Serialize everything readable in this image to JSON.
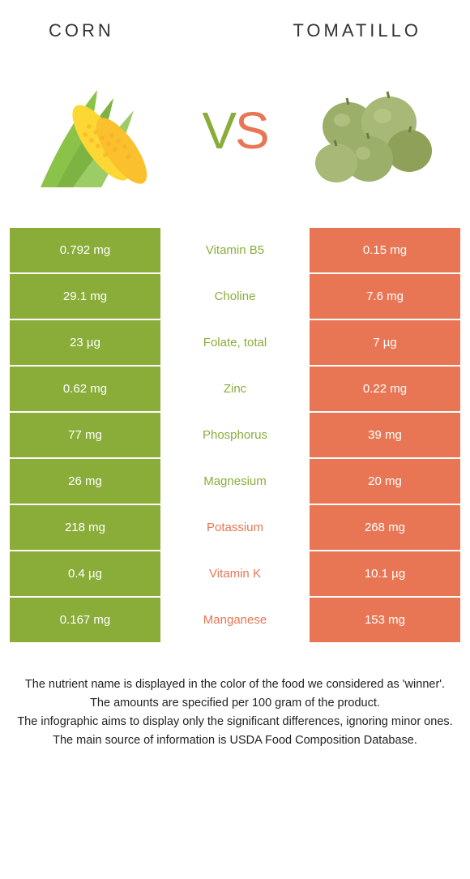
{
  "header": {
    "left": "Corn",
    "right": "Tomatillo"
  },
  "vs": {
    "v": "V",
    "s": "S"
  },
  "colors": {
    "left_bg": "#8aad3a",
    "right_bg": "#e87654",
    "left_text": "#8aad3a",
    "right_text": "#e87654",
    "white": "#ffffff"
  },
  "rows": [
    {
      "left": "0.792 mg",
      "mid": "Vitamin B5",
      "right": "0.15 mg",
      "winner": "left"
    },
    {
      "left": "29.1 mg",
      "mid": "Choline",
      "right": "7.6 mg",
      "winner": "left"
    },
    {
      "left": "23 µg",
      "mid": "Folate, total",
      "right": "7 µg",
      "winner": "left"
    },
    {
      "left": "0.62 mg",
      "mid": "Zinc",
      "right": "0.22 mg",
      "winner": "left"
    },
    {
      "left": "77 mg",
      "mid": "Phosphorus",
      "right": "39 mg",
      "winner": "left"
    },
    {
      "left": "26 mg",
      "mid": "Magnesium",
      "right": "20 mg",
      "winner": "left"
    },
    {
      "left": "218 mg",
      "mid": "Potassium",
      "right": "268 mg",
      "winner": "right"
    },
    {
      "left": "0.4 µg",
      "mid": "Vitamin K",
      "right": "10.1 µg",
      "winner": "right"
    },
    {
      "left": "0.167 mg",
      "mid": "Manganese",
      "right": "153 mg",
      "winner": "right"
    }
  ],
  "footer": {
    "l1": "The nutrient name is displayed in the color of the food we considered as 'winner'.",
    "l2": "The amounts are specified per 100 gram of the product.",
    "l3": "The infographic aims to display only the significant differences, ignoring minor ones.",
    "l4": "The main source of information is USDA Food Composition Database."
  }
}
